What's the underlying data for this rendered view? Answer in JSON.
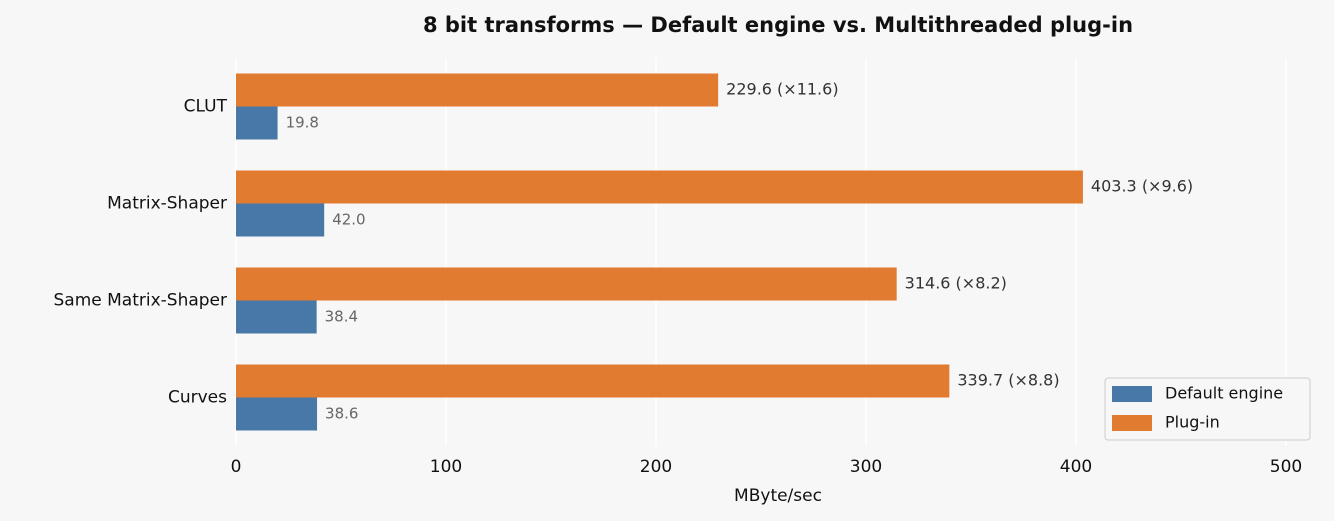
{
  "chart_data": {
    "type": "hbar",
    "title": "8 bit transforms — Default engine vs. Multithreaded plug-in",
    "categories": [
      "CLUT",
      "Matrix-Shaper",
      "Same Matrix-Shaper",
      "Curves"
    ],
    "series": [
      {
        "name": "Default engine",
        "color": "#4878a8",
        "values": [
          19.8,
          42.0,
          38.4,
          38.6
        ],
        "value_labels": [
          "19.8",
          "42.0",
          "38.4",
          "38.6"
        ]
      },
      {
        "name": "Plug-in",
        "color": "#e07b30",
        "values": [
          229.6,
          403.3,
          314.6,
          339.7
        ],
        "value_labels": [
          "229.6  (×11.6)",
          "403.3  (×9.6)",
          "314.6  (×8.2)",
          "339.7  (×8.8)"
        ]
      }
    ],
    "xlabel": "MByte/sec",
    "xlim": [
      0,
      500
    ],
    "xticks": [
      0,
      100,
      200,
      300,
      400,
      500
    ],
    "grid": true,
    "legend": "lower right"
  }
}
